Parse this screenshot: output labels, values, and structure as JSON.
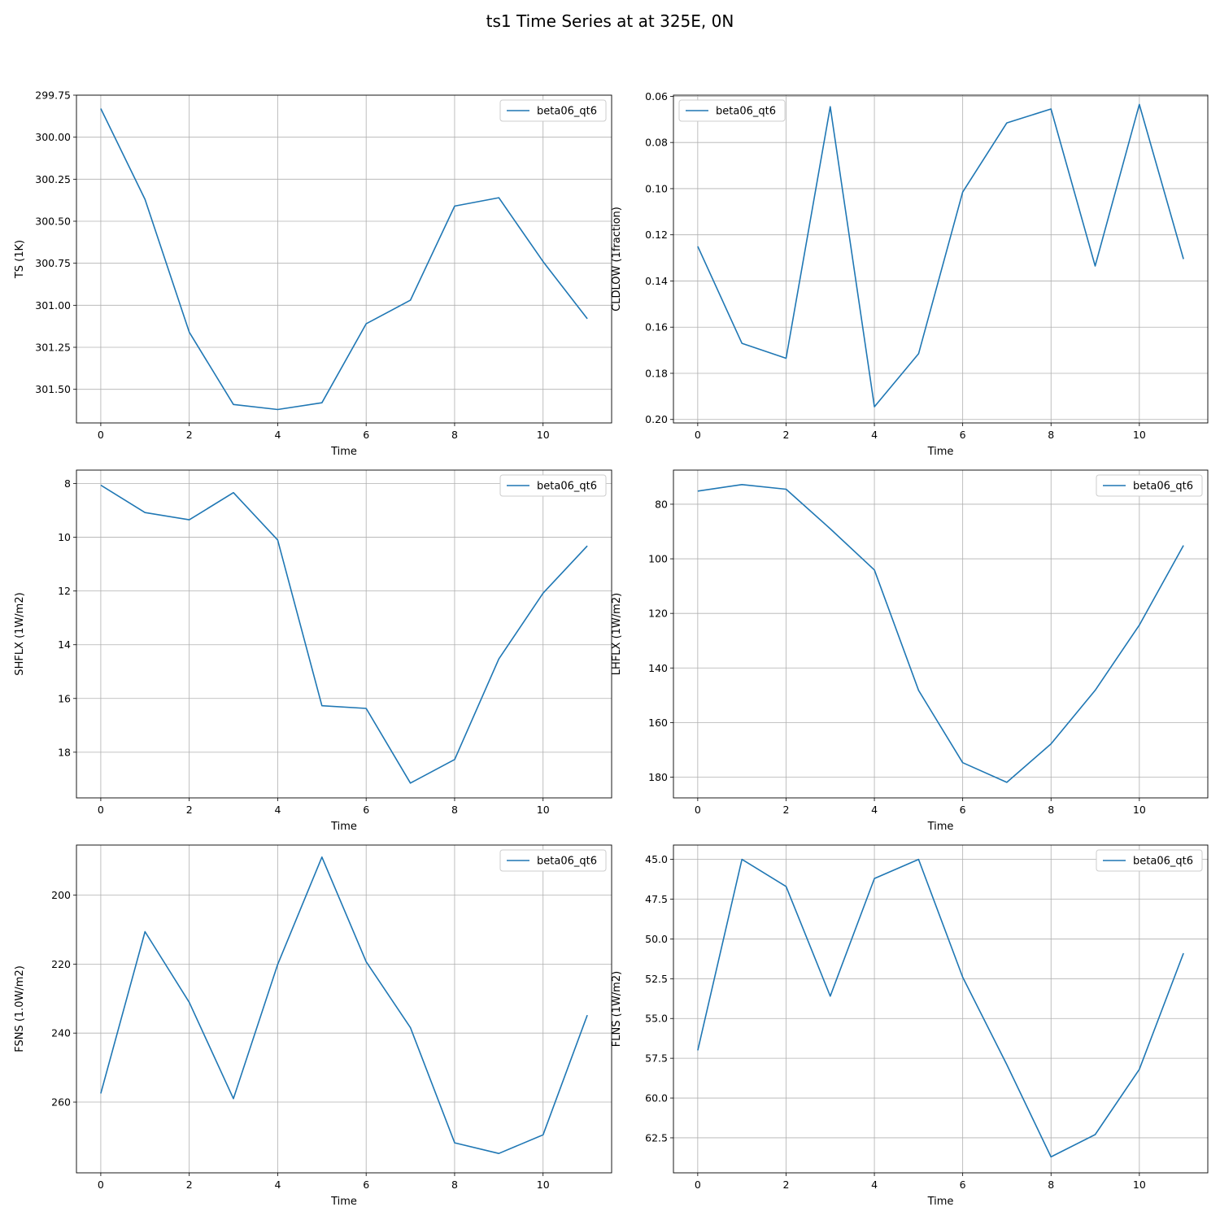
{
  "title": "ts1 Time Series at at 325E, 0N",
  "chart_data": [
    {
      "type": "line",
      "xlabel": "Time",
      "ylabel": "TS (1K)",
      "y_inverted": true,
      "ylim": [
        299.75,
        301.7
      ],
      "xlim": [
        -0.55,
        11.55
      ],
      "xticks": [
        0,
        2,
        4,
        6,
        8,
        10
      ],
      "yticks": [
        299.75,
        300.0,
        300.25,
        300.5,
        300.75,
        301.0,
        301.25,
        301.5
      ],
      "ytick_labels": [
        "299.75",
        "300.00",
        "300.25",
        "300.50",
        "300.75",
        "301.00",
        "301.25",
        "301.50"
      ],
      "grid": true,
      "legend_position": "upper right",
      "series": [
        {
          "name": "beta06_qt6",
          "color": "#1f77b4",
          "x": [
            0,
            1,
            2,
            3,
            4,
            5,
            6,
            7,
            8,
            9,
            10,
            11
          ],
          "values": [
            299.83,
            300.37,
            301.16,
            301.59,
            301.62,
            301.58,
            301.11,
            300.97,
            300.41,
            300.36,
            300.74,
            301.08
          ]
        }
      ]
    },
    {
      "type": "line",
      "xlabel": "Time",
      "ylabel": "CLDLOW (1fraction)",
      "y_inverted": true,
      "ylim": [
        0.0595,
        0.2015
      ],
      "xlim": [
        -0.55,
        11.55
      ],
      "xticks": [
        0,
        2,
        4,
        6,
        8,
        10
      ],
      "yticks": [
        0.06,
        0.08,
        0.1,
        0.12,
        0.14,
        0.16,
        0.18,
        0.2
      ],
      "ytick_labels": [
        "0.06",
        "0.08",
        "0.10",
        "0.12",
        "0.14",
        "0.16",
        "0.18",
        "0.20"
      ],
      "grid": true,
      "legend_position": "upper left",
      "series": [
        {
          "name": "beta06_qt6",
          "color": "#1f77b4",
          "x": [
            0,
            1,
            2,
            3,
            4,
            5,
            6,
            7,
            8,
            9,
            10,
            11
          ],
          "values": [
            0.125,
            0.167,
            0.1735,
            0.0645,
            0.1945,
            0.1715,
            0.1015,
            0.0715,
            0.0655,
            0.1335,
            0.0635,
            0.1305
          ]
        }
      ]
    },
    {
      "type": "line",
      "xlabel": "Time",
      "ylabel": "SHFLX (1W/m2)",
      "y_inverted": true,
      "ylim": [
        7.5,
        19.7
      ],
      "xlim": [
        -0.55,
        11.55
      ],
      "xticks": [
        0,
        2,
        4,
        6,
        8,
        10
      ],
      "yticks": [
        8,
        10,
        12,
        14,
        16,
        18
      ],
      "ytick_labels": [
        "8",
        "10",
        "12",
        "14",
        "16",
        "18"
      ],
      "grid": true,
      "legend_position": "upper right",
      "series": [
        {
          "name": "beta06_qt6",
          "color": "#1f77b4",
          "x": [
            0,
            1,
            2,
            3,
            4,
            5,
            6,
            7,
            8,
            9,
            10,
            11
          ],
          "values": [
            8.06,
            9.08,
            9.35,
            8.34,
            10.1,
            16.27,
            16.37,
            19.15,
            18.27,
            14.53,
            12.08,
            10.32
          ]
        }
      ]
    },
    {
      "type": "line",
      "xlabel": "Time",
      "ylabel": "LHFLX (1W/m2)",
      "y_inverted": true,
      "ylim": [
        67.5,
        187.6
      ],
      "xlim": [
        -0.55,
        11.55
      ],
      "xticks": [
        0,
        2,
        4,
        6,
        8,
        10
      ],
      "yticks": [
        80,
        100,
        120,
        140,
        160,
        180
      ],
      "ytick_labels": [
        "80",
        "100",
        "120",
        "140",
        "160",
        "180"
      ],
      "grid": true,
      "legend_position": "upper right",
      "series": [
        {
          "name": "beta06_qt6",
          "color": "#1f77b4",
          "x": [
            0,
            1,
            2,
            3,
            4,
            5,
            6,
            7,
            8,
            9,
            10,
            11
          ],
          "values": [
            75.2,
            72.8,
            74.5,
            89,
            104.1,
            148.2,
            174.7,
            181.9,
            167.8,
            148.2,
            124.3,
            95.1
          ]
        }
      ]
    },
    {
      "type": "line",
      "xlabel": "Time",
      "ylabel": "FSNS (1.0W/m2)",
      "y_inverted": true,
      "ylim": [
        185.5,
        280.5
      ],
      "xlim": [
        -0.55,
        11.55
      ],
      "xticks": [
        0,
        2,
        4,
        6,
        8,
        10
      ],
      "yticks": [
        200,
        220,
        240,
        260
      ],
      "ytick_labels": [
        "200",
        "220",
        "240",
        "260"
      ],
      "grid": true,
      "legend_position": "upper right",
      "series": [
        {
          "name": "beta06_qt6",
          "color": "#1f77b4",
          "x": [
            0,
            1,
            2,
            3,
            4,
            5,
            6,
            7,
            8,
            9,
            10,
            11
          ],
          "values": [
            257.5,
            210.6,
            231.1,
            259,
            220.1,
            189,
            219.3,
            238.4,
            271.8,
            274.9,
            269.5,
            234.8
          ]
        }
      ]
    },
    {
      "type": "line",
      "xlabel": "Time",
      "ylabel": "FLNS (1W/m2)",
      "y_inverted": true,
      "ylim": [
        44.1,
        64.7
      ],
      "xlim": [
        -0.55,
        11.55
      ],
      "xticks": [
        0,
        2,
        4,
        6,
        8,
        10
      ],
      "yticks": [
        45.0,
        47.5,
        50.0,
        52.5,
        55.0,
        57.5,
        60.0,
        62.5
      ],
      "ytick_labels": [
        "45.0",
        "47.5",
        "50.0",
        "52.5",
        "55.0",
        "57.5",
        "60.0",
        "62.5"
      ],
      "grid": true,
      "legend_position": "upper right",
      "series": [
        {
          "name": "beta06_qt6",
          "color": "#1f77b4",
          "x": [
            0,
            1,
            2,
            3,
            4,
            5,
            6,
            7,
            8,
            9,
            10,
            11
          ],
          "values": [
            57.0,
            45.0,
            46.7,
            53.6,
            46.2,
            45.0,
            52.4,
            57.9,
            63.7,
            62.3,
            58.2,
            50.9
          ]
        }
      ]
    }
  ]
}
